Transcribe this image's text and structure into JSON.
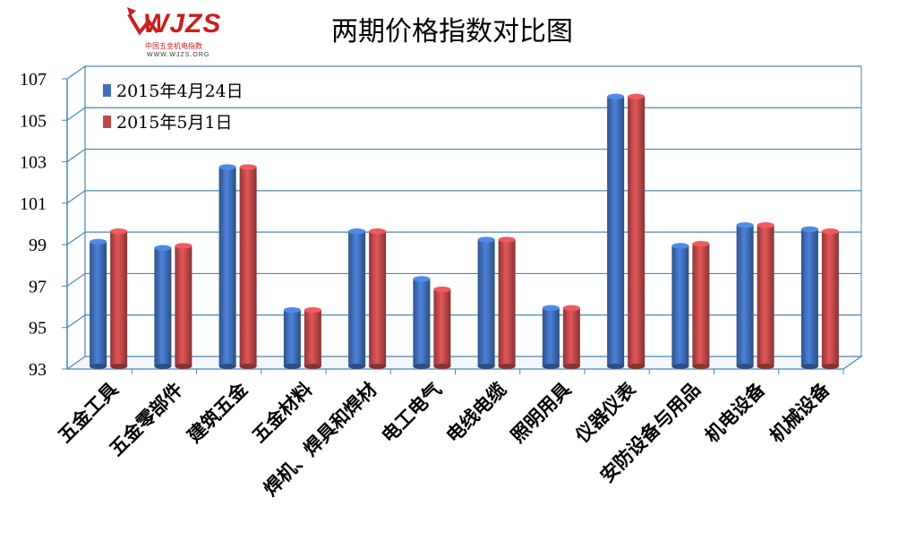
{
  "logo": {
    "brand": "WJZS",
    "subtitle": "中国五金机电指数",
    "url": "WWW.WJZS.ORG"
  },
  "chart_data": {
    "type": "bar",
    "title": "两期价格指数对比图",
    "categories": [
      "五金工具",
      "五金零部件",
      "建筑五金",
      "五金材料",
      "焊机、焊具和焊材",
      "电工电气",
      "电线电缆",
      "照明用具",
      "仪器仪表",
      "安防设备与用品",
      "机电设备",
      "机械设备"
    ],
    "series": [
      {
        "name": "2015年4月24日",
        "color": "#3f6fb8",
        "values": [
          99.1,
          98.8,
          102.7,
          95.8,
          99.6,
          97.3,
          99.2,
          95.9,
          106.1,
          98.9,
          99.9,
          99.7
        ]
      },
      {
        "name": "2015年5月1日",
        "color": "#c0494a",
        "values": [
          99.6,
          98.9,
          102.7,
          95.8,
          99.6,
          96.8,
          99.2,
          95.9,
          106.1,
          99.0,
          99.9,
          99.6
        ]
      }
    ],
    "yticks": [
      "93",
      "95",
      "97",
      "99",
      "101",
      "103",
      "105",
      "107"
    ],
    "ylim": [
      93,
      107
    ],
    "grid": true,
    "legend": "top-left",
    "colors": {
      "grid": "#4a86b5",
      "axis": "#4a86b5"
    }
  }
}
